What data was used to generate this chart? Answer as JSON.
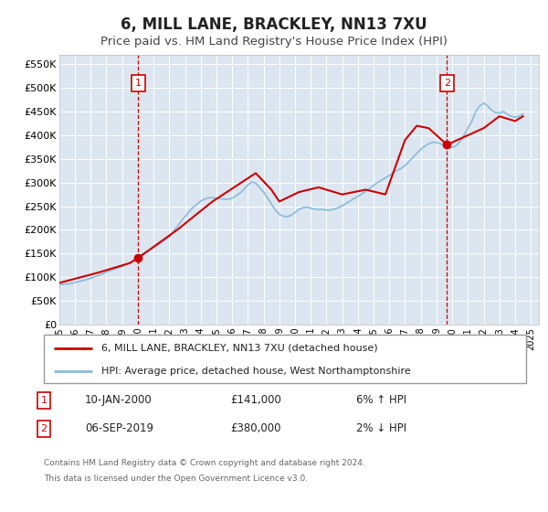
{
  "title": "6, MILL LANE, BRACKLEY, NN13 7XU",
  "subtitle": "Price paid vs. HM Land Registry's House Price Index (HPI)",
  "title_fontsize": 12,
  "subtitle_fontsize": 9.5,
  "bg_color": "#ffffff",
  "plot_bg_color": "#dce6f0",
  "grid_color": "#ffffff",
  "red_line_color": "#cc0000",
  "blue_line_color": "#88bbdd",
  "marker1_date": 2000.03,
  "marker1_value": 141000,
  "marker2_date": 2019.67,
  "marker2_value": 380000,
  "vline_color": "#cc0000",
  "marker_box_color": "#cc0000",
  "ylim": [
    0,
    570000
  ],
  "xlim": [
    1995.0,
    2025.5
  ],
  "yticks": [
    0,
    50000,
    100000,
    150000,
    200000,
    250000,
    300000,
    350000,
    400000,
    450000,
    500000,
    550000
  ],
  "ytick_labels": [
    "£0",
    "£50K",
    "£100K",
    "£150K",
    "£200K",
    "£250K",
    "£300K",
    "£350K",
    "£400K",
    "£450K",
    "£500K",
    "£550K"
  ],
  "xtick_years": [
    1995,
    1996,
    1997,
    1998,
    1999,
    2000,
    2001,
    2002,
    2003,
    2004,
    2005,
    2006,
    2007,
    2008,
    2009,
    2010,
    2011,
    2012,
    2013,
    2014,
    2015,
    2016,
    2017,
    2018,
    2019,
    2020,
    2021,
    2022,
    2023,
    2024,
    2025
  ],
  "legend_label_red": "6, MILL LANE, BRACKLEY, NN13 7XU (detached house)",
  "legend_label_blue": "HPI: Average price, detached house, West Northamptonshire",
  "annotation1_date": "10-JAN-2000",
  "annotation1_price": "£141,000",
  "annotation1_hpi": "6% ↑ HPI",
  "annotation2_date": "06-SEP-2019",
  "annotation2_price": "£380,000",
  "annotation2_hpi": "2% ↓ HPI",
  "footer1": "Contains HM Land Registry data © Crown copyright and database right 2024.",
  "footer2": "This data is licensed under the Open Government Licence v3.0.",
  "hpi_x": [
    1995.0,
    1995.25,
    1995.5,
    1995.75,
    1996.0,
    1996.25,
    1996.5,
    1996.75,
    1997.0,
    1997.25,
    1997.5,
    1997.75,
    1998.0,
    1998.25,
    1998.5,
    1998.75,
    1999.0,
    1999.25,
    1999.5,
    1999.75,
    2000.0,
    2000.25,
    2000.5,
    2000.75,
    2001.0,
    2001.25,
    2001.5,
    2001.75,
    2002.0,
    2002.25,
    2002.5,
    2002.75,
    2003.0,
    2003.25,
    2003.5,
    2003.75,
    2004.0,
    2004.25,
    2004.5,
    2004.75,
    2005.0,
    2005.25,
    2005.5,
    2005.75,
    2006.0,
    2006.25,
    2006.5,
    2006.75,
    2007.0,
    2007.25,
    2007.5,
    2007.75,
    2008.0,
    2008.25,
    2008.5,
    2008.75,
    2009.0,
    2009.25,
    2009.5,
    2009.75,
    2010.0,
    2010.25,
    2010.5,
    2010.75,
    2011.0,
    2011.25,
    2011.5,
    2011.75,
    2012.0,
    2012.25,
    2012.5,
    2012.75,
    2013.0,
    2013.25,
    2013.5,
    2013.75,
    2014.0,
    2014.25,
    2014.5,
    2014.75,
    2015.0,
    2015.25,
    2015.5,
    2015.75,
    2016.0,
    2016.25,
    2016.5,
    2016.75,
    2017.0,
    2017.25,
    2017.5,
    2017.75,
    2018.0,
    2018.25,
    2018.5,
    2018.75,
    2019.0,
    2019.25,
    2019.5,
    2019.75,
    2020.0,
    2020.25,
    2020.5,
    2020.75,
    2021.0,
    2021.25,
    2021.5,
    2021.75,
    2022.0,
    2022.25,
    2022.5,
    2022.75,
    2023.0,
    2023.25,
    2023.5,
    2023.75,
    2024.0,
    2024.25,
    2024.5
  ],
  "hpi_y": [
    84000,
    85000,
    86000,
    87000,
    89000,
    91000,
    93000,
    95000,
    98000,
    101000,
    104000,
    107000,
    111000,
    114000,
    117000,
    120000,
    123000,
    127000,
    131000,
    136000,
    141000,
    147000,
    153000,
    158000,
    163000,
    168000,
    173000,
    179000,
    185000,
    196000,
    207000,
    218000,
    228000,
    238000,
    247000,
    254000,
    261000,
    265000,
    268000,
    268000,
    267000,
    266000,
    265000,
    265000,
    267000,
    272000,
    278000,
    286000,
    295000,
    301000,
    299000,
    290000,
    280000,
    268000,
    255000,
    242000,
    233000,
    229000,
    228000,
    231000,
    237000,
    243000,
    247000,
    248000,
    246000,
    244000,
    243000,
    243000,
    242000,
    242000,
    244000,
    247000,
    251000,
    256000,
    261000,
    266000,
    271000,
    276000,
    282000,
    288000,
    294000,
    300000,
    305000,
    310000,
    315000,
    321000,
    326000,
    330000,
    336000,
    344000,
    353000,
    362000,
    370000,
    377000,
    382000,
    385000,
    385000,
    382000,
    378000,
    375000,
    374000,
    378000,
    387000,
    400000,
    415000,
    430000,
    450000,
    462000,
    468000,
    462000,
    453000,
    448000,
    447000,
    450000,
    445000,
    440000,
    438000,
    440000,
    445000
  ],
  "price_x": [
    1995.0,
    1997.5,
    1999.5,
    2000.03,
    2002.5,
    2004.75,
    2007.5,
    2008.5,
    2009.0,
    2010.25,
    2011.5,
    2013.0,
    2014.5,
    2015.75,
    2017.0,
    2017.75,
    2018.5,
    2019.67,
    2022.0,
    2023.0,
    2024.0,
    2024.5
  ],
  "price_y": [
    88000,
    110000,
    130000,
    141000,
    200000,
    260000,
    320000,
    285000,
    260000,
    280000,
    290000,
    275000,
    285000,
    275000,
    390000,
    420000,
    415000,
    380000,
    415000,
    440000,
    430000,
    440000
  ]
}
